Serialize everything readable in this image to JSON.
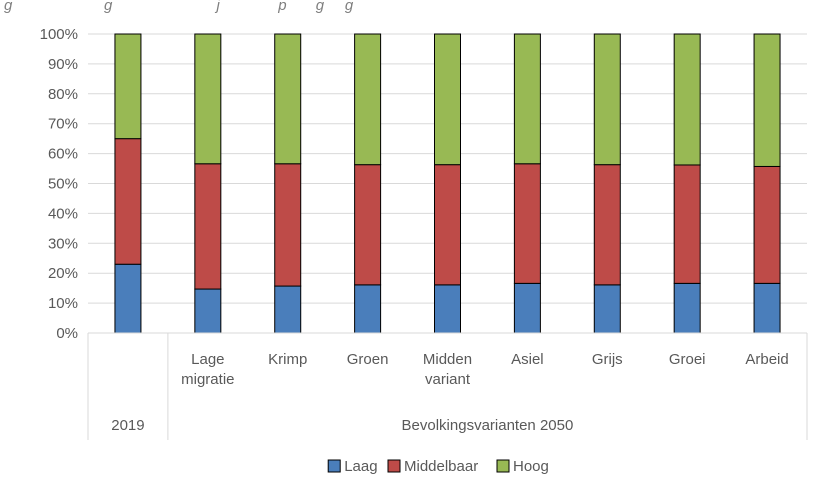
{
  "header_fragment": "g                      g                         j              p       g     g",
  "chart_data": {
    "type": "bar",
    "stacked": true,
    "percent": true,
    "ylim": [
      0,
      100
    ],
    "yticks": [
      "0%",
      "10%",
      "20%",
      "30%",
      "40%",
      "50%",
      "60%",
      "70%",
      "80%",
      "90%",
      "100%"
    ],
    "categories": [
      {
        "label": [
          "",
          ""
        ],
        "group": "2019"
      },
      {
        "label": [
          "Lage",
          "migratie"
        ],
        "group": "Bevolkingsvarianten 2050"
      },
      {
        "label": [
          "Krimp",
          ""
        ],
        "group": "Bevolkingsvarianten 2050"
      },
      {
        "label": [
          "Groen",
          ""
        ],
        "group": "Bevolkingsvarianten 2050"
      },
      {
        "label": [
          "Midden",
          "variant"
        ],
        "group": "Bevolkingsvarianten 2050"
      },
      {
        "label": [
          "Asiel",
          ""
        ],
        "group": "Bevolkingsvarianten 2050"
      },
      {
        "label": [
          "Grijs",
          ""
        ],
        "group": "Bevolkingsvarianten 2050"
      },
      {
        "label": [
          "Groei",
          ""
        ],
        "group": "Bevolkingsvarianten 2050"
      },
      {
        "label": [
          "Arbeid",
          ""
        ],
        "group": "Bevolkingsvarianten 2050"
      }
    ],
    "groups": [
      {
        "label": "2019",
        "span": 1
      },
      {
        "label": "Bevolkingsvarianten 2050",
        "span": 8
      }
    ],
    "series": [
      {
        "name": "Laag",
        "color": "#4a7ebb",
        "values": [
          23,
          14.7,
          15.7,
          16.1,
          16.1,
          16.6,
          16.1,
          16.6,
          16.6
        ]
      },
      {
        "name": "Middelbaar",
        "color": "#be4b48",
        "values": [
          42,
          41.9,
          40.9,
          40.2,
          40.2,
          40.0,
          40.2,
          39.6,
          39.1
        ]
      },
      {
        "name": "Hoog",
        "color": "#98b954",
        "values": [
          35,
          43.4,
          43.4,
          43.7,
          43.7,
          43.4,
          43.7,
          43.8,
          44.3
        ]
      }
    ],
    "legend_position": "bottom"
  }
}
